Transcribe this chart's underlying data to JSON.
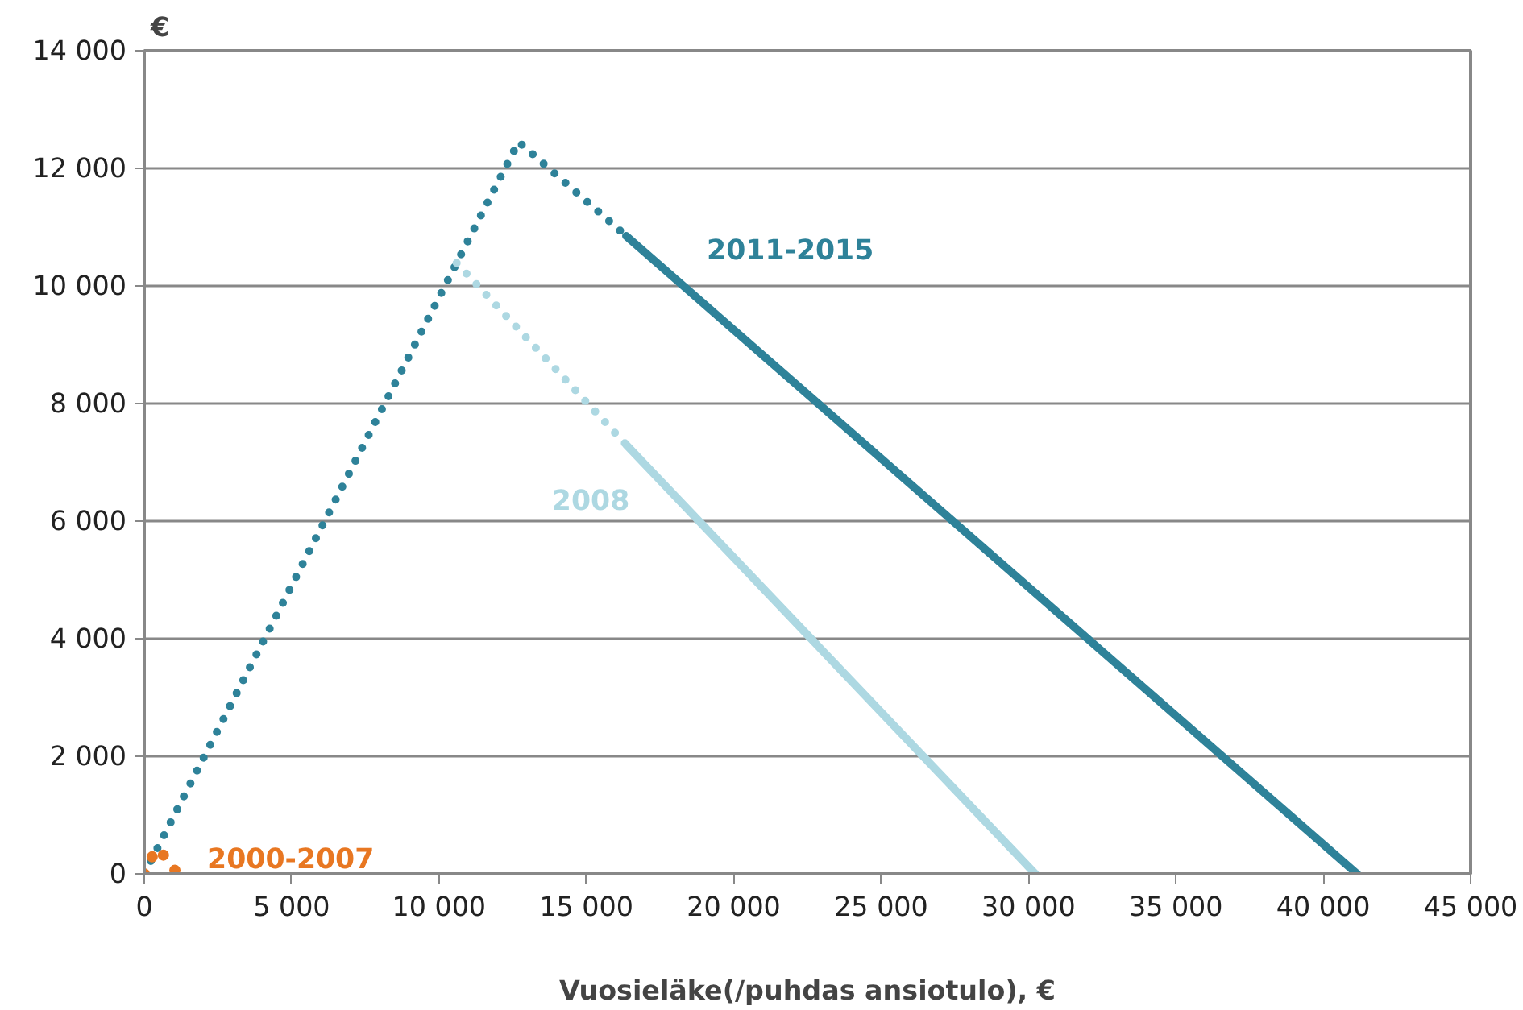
{
  "chart_data": {
    "type": "line",
    "xlabel": "Vuosieläke(/puhdas ansiotulo), €",
    "ylabel": "€",
    "xlim": [
      0,
      45000
    ],
    "ylim": [
      0,
      14000
    ],
    "xticks": [
      0,
      {
        "value": 5000,
        "label": "5 000"
      },
      {
        "value": 10000,
        "label": "10 000"
      },
      {
        "value": 15000,
        "label": "15 000"
      },
      {
        "value": 20000,
        "label": "20 000"
      },
      {
        "value": 25000,
        "label": "25 000"
      },
      {
        "value": 30000,
        "label": "30 000"
      },
      {
        "value": 35000,
        "label": "35 000"
      },
      {
        "value": 40000,
        "label": "40 000"
      },
      {
        "value": 45000,
        "label": "45 000"
      }
    ],
    "yticks": [
      0,
      {
        "value": 2000,
        "label": "2 000"
      },
      {
        "value": 4000,
        "label": "4 000"
      },
      {
        "value": 6000,
        "label": "6 000"
      },
      {
        "value": 8000,
        "label": "8 000"
      },
      {
        "value": 10000,
        "label": "10 000"
      },
      {
        "value": 12000,
        "label": "12 000"
      },
      {
        "value": 14000,
        "label": "14 000"
      }
    ],
    "grid": "y",
    "series": [
      {
        "color": "#2e8299",
        "line_style": "dotted",
        "x": [
          0,
          12700,
          16350
        ],
        "values": [
          0,
          12450,
          10850
        ]
      },
      {
        "name": "2011-2015",
        "color": "#2e8299",
        "line_style": "solid",
        "x": [
          16350,
          41150
        ],
        "values": [
          10850,
          0
        ]
      },
      {
        "color": "#add8e2",
        "line_style": "dotted",
        "x": [
          10600,
          16350
        ],
        "values": [
          10390,
          7300
        ]
      },
      {
        "name": "2008",
        "color": "#add8e2",
        "line_style": "solid",
        "x": [
          16350,
          30230
        ],
        "values": [
          7300,
          0
        ]
      },
      {
        "name": "2000-2007",
        "type": "scatter",
        "marker": "circle",
        "color": "#e87722",
        "x": [
          0,
          270,
          650,
          1040
        ],
        "values": [
          0,
          290,
          320,
          60
        ]
      }
    ]
  }
}
